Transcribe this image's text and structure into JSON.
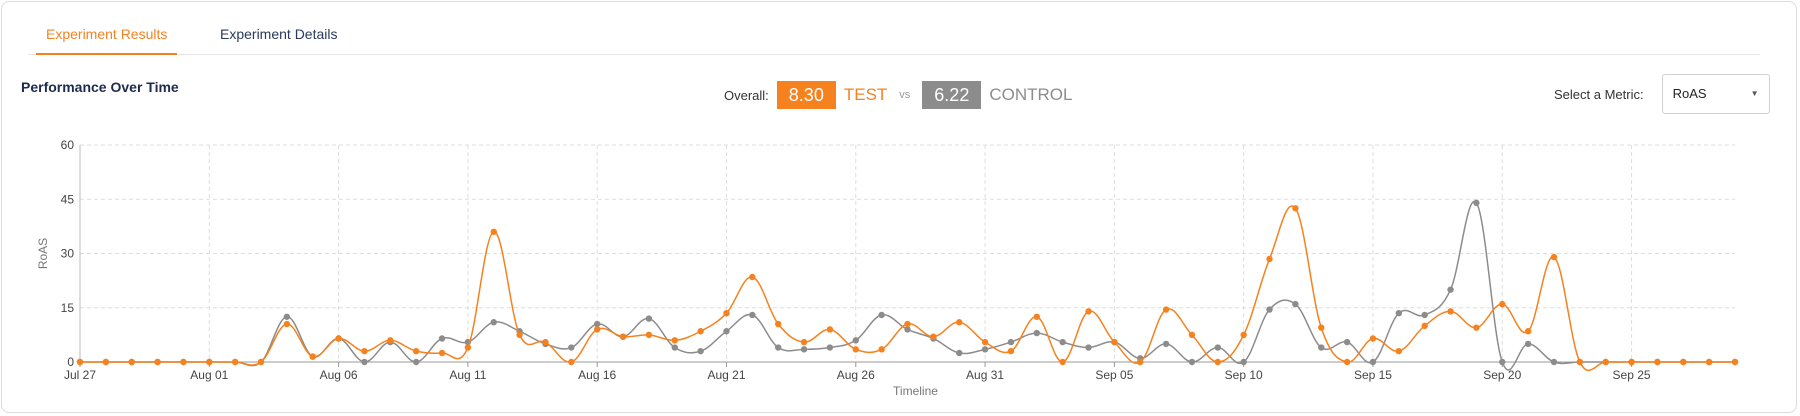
{
  "tabs": [
    {
      "label": "Experiment Results",
      "active": true
    },
    {
      "label": "Experiment Details",
      "active": false
    }
  ],
  "panel_title": "Performance Over Time",
  "overall": {
    "label": "Overall:",
    "test_value": "8.30",
    "test_label": "TEST",
    "vs_label": "vs",
    "control_value": "6.22",
    "control_label": "CONTROL"
  },
  "metric": {
    "label": "Select a Metric:",
    "selected": "RoAS"
  },
  "colors": {
    "test": "#f5821f",
    "control": "#8c8c8c"
  },
  "chart_data": {
    "type": "line",
    "xlabel": "Timeline",
    "ylabel": "RoAS",
    "ylim": [
      0,
      60
    ],
    "yticks": [
      0,
      15,
      30,
      45,
      60
    ],
    "xticks": [
      "Jul 27",
      "Aug 01",
      "Aug 06",
      "Aug 11",
      "Aug 16",
      "Aug 21",
      "Aug 26",
      "Aug 31",
      "Sep 05",
      "Sep 10",
      "Sep 15",
      "Sep 20",
      "Sep 25"
    ],
    "grid": true,
    "x_start": "Jul 27",
    "x_step_days": 1,
    "series": [
      {
        "name": "TEST",
        "color": "#f5821f",
        "values": [
          0,
          0,
          0,
          0,
          0,
          0,
          0,
          0,
          10.5,
          1.5,
          6.5,
          3,
          6,
          3,
          2.5,
          4,
          36,
          7.5,
          5.5,
          0,
          9,
          7,
          7.5,
          6,
          8.5,
          13.5,
          23.5,
          10.5,
          5.5,
          9,
          3.5,
          3.5,
          10.5,
          7,
          11,
          5.5,
          3,
          12.5,
          0,
          14,
          5.5,
          0,
          14.5,
          7.5,
          0,
          7.5,
          28.5,
          42.5,
          9.5,
          0,
          6.5,
          3,
          10,
          14,
          9.5,
          16,
          8.5,
          29,
          0,
          0,
          0,
          0,
          0,
          0,
          0
        ]
      },
      {
        "name": "CONTROL",
        "color": "#8c8c8c",
        "values": [
          0,
          0,
          0,
          0,
          0,
          0,
          0,
          0,
          12.5,
          1.5,
          6.5,
          0,
          5.5,
          0,
          6.5,
          5.5,
          11,
          8.5,
          5,
          4,
          10.5,
          7,
          12,
          4,
          3,
          8.5,
          13,
          4,
          3.5,
          4,
          6,
          13,
          9,
          6.5,
          2.5,
          3.5,
          5.5,
          8,
          5.5,
          4,
          5.5,
          1,
          5,
          0,
          4,
          0,
          14.5,
          16,
          4,
          5.5,
          0,
          13.5,
          13,
          20,
          44,
          0,
          5,
          0,
          0,
          0,
          0,
          0,
          0,
          0,
          0
        ]
      }
    ]
  }
}
